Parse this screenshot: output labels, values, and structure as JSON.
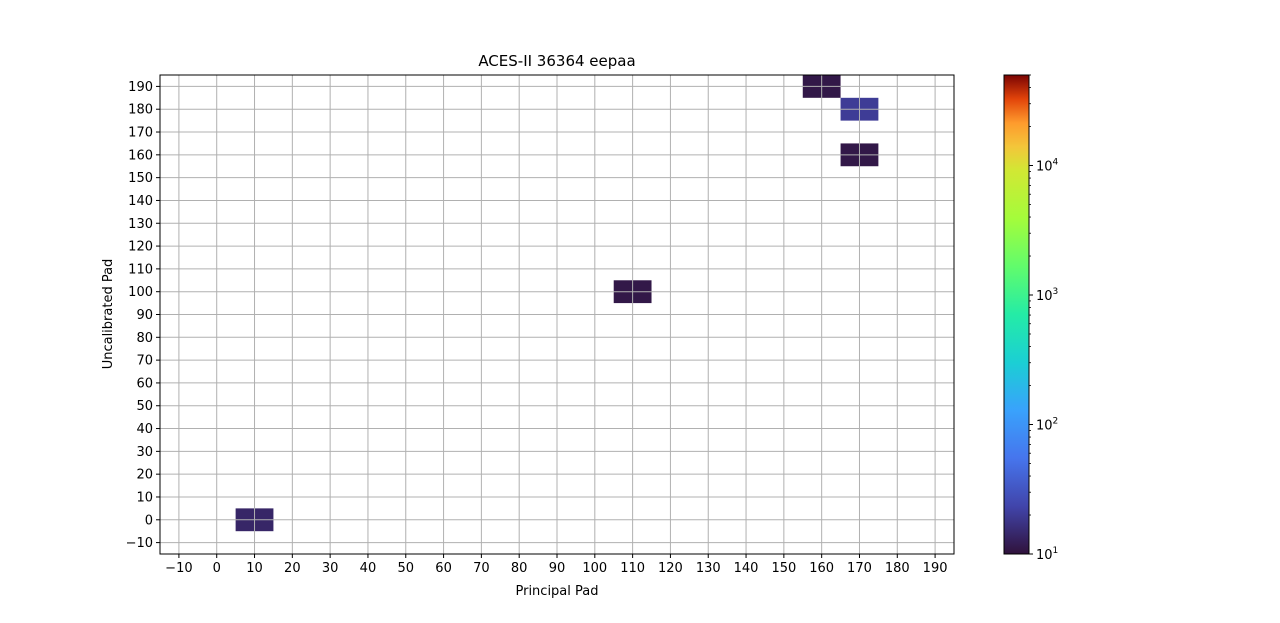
{
  "chart_data": {
    "type": "heatmap",
    "title": "ACES-II 36364 eepaa",
    "xlabel": "Principal Pad",
    "ylabel": "Uncalibrated Pad",
    "xlim": [
      -15,
      195
    ],
    "ylim": [
      -15,
      195
    ],
    "x_ticks": [
      -10,
      0,
      10,
      20,
      30,
      40,
      50,
      60,
      70,
      80,
      90,
      100,
      110,
      120,
      130,
      140,
      150,
      160,
      170,
      180,
      190
    ],
    "y_ticks": [
      -10,
      0,
      10,
      20,
      30,
      40,
      50,
      60,
      70,
      80,
      90,
      100,
      110,
      120,
      130,
      140,
      150,
      160,
      170,
      180,
      190
    ],
    "cell_width": 10,
    "cell_height": 10,
    "grid": true,
    "colormap": "turbo",
    "color_scale": "log",
    "color_range": [
      10,
      50000
    ],
    "colorbar_ticks": [
      {
        "value": 10,
        "base": "10",
        "exp": "1"
      },
      {
        "value": 100,
        "base": "10",
        "exp": "2"
      },
      {
        "value": 1000,
        "base": "10",
        "exp": "3"
      },
      {
        "value": 10000,
        "base": "10",
        "exp": "4"
      }
    ],
    "cells": [
      {
        "x": 160,
        "y": 190,
        "value": 11
      },
      {
        "x": 170,
        "y": 180,
        "value": 20
      },
      {
        "x": 170,
        "y": 160,
        "value": 11
      },
      {
        "x": 110,
        "y": 100,
        "value": 11
      },
      {
        "x": 10,
        "y": 0,
        "value": 14
      }
    ]
  }
}
